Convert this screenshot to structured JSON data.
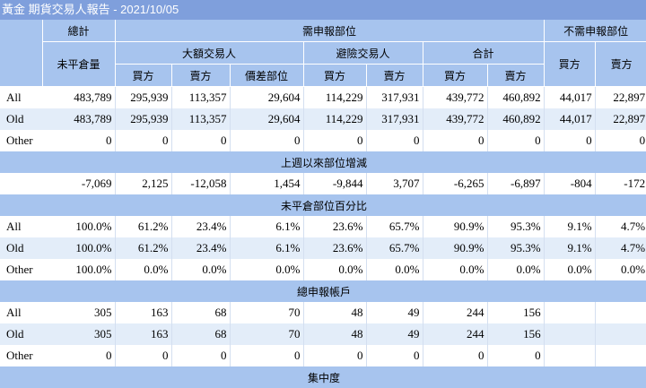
{
  "title": "黃金 期貨交易人報告 - 2021/10/05",
  "header": {
    "total": "總計",
    "reportable": "需申報部位",
    "non_reportable": "不需申報部位",
    "open_interest": "未平倉量",
    "large_traders": "大額交易人",
    "hedgers": "避險交易人",
    "combined": "合計",
    "buy": "買方",
    "sell": "賣方",
    "spread": "價差部位"
  },
  "sections": [
    {
      "title": "",
      "rows": [
        {
          "label": "All",
          "values": [
            "483,789",
            "295,939",
            "113,357",
            "29,604",
            "114,229",
            "317,931",
            "439,772",
            "460,892",
            "44,017",
            "22,897"
          ]
        },
        {
          "label": "Old",
          "values": [
            "483,789",
            "295,939",
            "113,357",
            "29,604",
            "114,229",
            "317,931",
            "439,772",
            "460,892",
            "44,017",
            "22,897"
          ]
        },
        {
          "label": "Other",
          "values": [
            "0",
            "0",
            "0",
            "0",
            "0",
            "0",
            "0",
            "0",
            "0",
            "0"
          ]
        }
      ]
    },
    {
      "title": "上週以來部位增減",
      "rows": [
        {
          "label": "",
          "values": [
            "-7,069",
            "2,125",
            "-12,058",
            "1,454",
            "-9,844",
            "3,707",
            "-6,265",
            "-6,897",
            "-804",
            "-172"
          ]
        }
      ]
    },
    {
      "title": "未平倉部位百分比",
      "rows": [
        {
          "label": "All",
          "values": [
            "100.0%",
            "61.2%",
            "23.4%",
            "6.1%",
            "23.6%",
            "65.7%",
            "90.9%",
            "95.3%",
            "9.1%",
            "4.7%"
          ]
        },
        {
          "label": "Old",
          "values": [
            "100.0%",
            "61.2%",
            "23.4%",
            "6.1%",
            "23.6%",
            "65.7%",
            "90.9%",
            "95.3%",
            "9.1%",
            "4.7%"
          ]
        },
        {
          "label": "Other",
          "values": [
            "100.0%",
            "0.0%",
            "0.0%",
            "0.0%",
            "0.0%",
            "0.0%",
            "0.0%",
            "0.0%",
            "0.0%",
            "0.0%"
          ]
        }
      ]
    },
    {
      "title": "總申報帳戶",
      "rows": [
        {
          "label": "All",
          "values": [
            "305",
            "163",
            "68",
            "70",
            "48",
            "49",
            "244",
            "156",
            "",
            ""
          ]
        },
        {
          "label": "Old",
          "values": [
            "305",
            "163",
            "68",
            "70",
            "48",
            "49",
            "244",
            "156",
            "",
            ""
          ]
        },
        {
          "label": "Other",
          "values": [
            "0",
            "0",
            "0",
            "0",
            "0",
            "0",
            "0",
            "0",
            "",
            ""
          ]
        }
      ]
    }
  ],
  "footer_section_partial": "集中度"
}
